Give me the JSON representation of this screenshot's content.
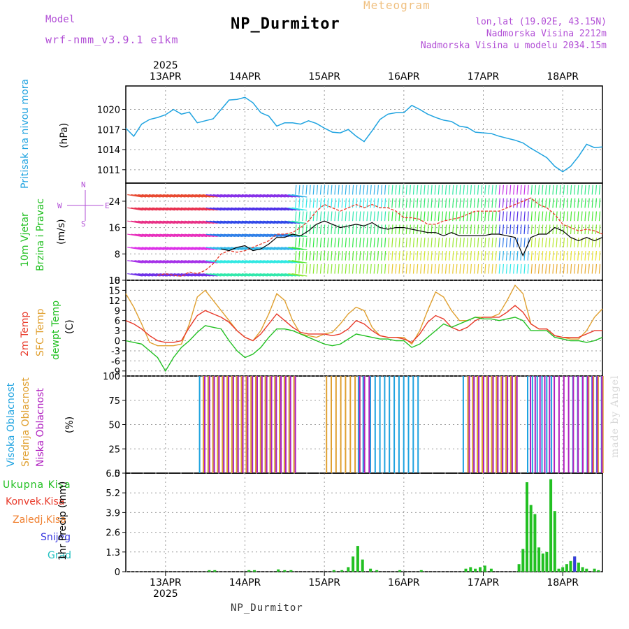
{
  "header": {
    "title": "NP_Durmitor",
    "subtitle": "Meteogram",
    "model_label": "Model",
    "model_value": "wrf-nmm_v3.9.1 e1km",
    "lonlat": "lon,lat (19.02E, 43.15N)",
    "elevation": "Nadmorska Visina 2212m",
    "elevation_model": "Nadmorska Visina u modelu 2034.15m",
    "footer": "NP_Durmitor",
    "watermark": "made by Angel"
  },
  "axis": {
    "year": "2025",
    "days": [
      "13APR",
      "14APR",
      "15APR",
      "16APR",
      "17APR",
      "18APR"
    ]
  },
  "panels": {
    "pressure": {
      "label1": "Pritisak na nivou mora",
      "unit": "(hPa)"
    },
    "wind": {
      "label1": "10m Vjetar",
      "label2": "Brzina i Pravac",
      "unit": "(m/s)",
      "compass_n": "N",
      "compass_s": "S",
      "compass_w": "W",
      "compass_e": "E"
    },
    "temp": {
      "label1": "2m Temp",
      "label2": "SFC Temp",
      "label3": "dewpt Temp",
      "unit": "(C)"
    },
    "cloud": {
      "label1": "Visoka Oblacnost",
      "label2": "Srednja Oblacnost",
      "label3": "Niska Oblacnost",
      "unit": "(%)"
    },
    "precip": {
      "label_total": "Ukupna Kisa",
      "label_conv": "Konvek.Kisa",
      "label_frz": "Zaledj.Kisa",
      "label_snow": "Snijeg",
      "label_hail": "Grad",
      "unit": "1hr Precip (mm)"
    }
  },
  "colors": {
    "pressure": "#1fa3e0",
    "wind_speed": "#000000",
    "wind_gust": "#e83a2a",
    "temp2m": "#e83a2a",
    "sfc": "#e0a030",
    "dewpt": "#22c022",
    "cloud_high": "#1fa3e0",
    "cloud_mid": "#e0a030",
    "cloud_low": "#b020c0",
    "precip_total": "#22c022",
    "precip_snow": "#3a3ae0",
    "purple_text": "#b24fd6"
  },
  "chart_data": [
    {
      "type": "line",
      "name": "pressure",
      "x": [
        12.5,
        12.6,
        12.7,
        12.8,
        12.9,
        13.0,
        13.1,
        13.2,
        13.3,
        13.4,
        13.5,
        13.6,
        13.7,
        13.8,
        13.9,
        14.0,
        14.1,
        14.2,
        14.3,
        14.4,
        14.5,
        14.6,
        14.7,
        14.8,
        14.9,
        15.0,
        15.1,
        15.2,
        15.3,
        15.4,
        15.5,
        15.6,
        15.7,
        15.8,
        15.9,
        16.0,
        16.1,
        16.2,
        16.3,
        16.4,
        16.5,
        16.6,
        16.7,
        16.8,
        16.9,
        17.0,
        17.1,
        17.2,
        17.3,
        17.4,
        17.5,
        17.6,
        17.7,
        17.8,
        17.9,
        18.0,
        18.1,
        18.2,
        18.3,
        18.4,
        18.5
      ],
      "y": [
        1017.2,
        1016,
        1017.8,
        1018.5,
        1018.8,
        1019.2,
        1020,
        1019.3,
        1019.6,
        1018,
        1018.3,
        1018.6,
        1020,
        1021.4,
        1021.5,
        1021.8,
        1021,
        1019.5,
        1019,
        1017.5,
        1018,
        1018,
        1017.8,
        1018.3,
        1017.9,
        1017.2,
        1016.6,
        1016.5,
        1017,
        1016,
        1015.2,
        1016.8,
        1018.5,
        1019.3,
        1019.5,
        1019.5,
        1020.6,
        1020,
        1019.3,
        1018.8,
        1018.4,
        1018.2,
        1017.5,
        1017.3,
        1016.6,
        1016.5,
        1016.4,
        1016,
        1015.7,
        1015.4,
        1015,
        1014.2,
        1013.5,
        1012.8,
        1011.5,
        1010.7,
        1011.5,
        1013,
        1014.8,
        1014.3,
        1014.4
      ],
      "ylim": [
        1009,
        1023.5
      ],
      "yticks": [
        1011,
        1014,
        1017,
        1020
      ]
    },
    {
      "type": "line",
      "name": "wind",
      "x": [
        12.5,
        12.6,
        12.7,
        12.8,
        12.9,
        13.0,
        13.1,
        13.2,
        13.3,
        13.4,
        13.5,
        13.6,
        13.7,
        13.8,
        13.9,
        14.0,
        14.1,
        14.2,
        14.3,
        14.4,
        14.5,
        14.6,
        14.7,
        14.8,
        14.9,
        15.0,
        15.1,
        15.2,
        15.3,
        15.4,
        15.5,
        15.6,
        15.7,
        15.8,
        15.9,
        16.0,
        16.1,
        16.2,
        16.3,
        16.4,
        16.5,
        16.6,
        16.7,
        16.8,
        16.9,
        17.0,
        17.1,
        17.2,
        17.3,
        17.4,
        17.5,
        17.6,
        17.7,
        17.8,
        17.9,
        18.0,
        18.1,
        18.2,
        18.3,
        18.4,
        18.5
      ],
      "speed": [
        null,
        null,
        null,
        null,
        null,
        null,
        null,
        null,
        null,
        null,
        null,
        null,
        9.5,
        9,
        10,
        10.5,
        9,
        9.5,
        11,
        13,
        13,
        14,
        13.5,
        15,
        17,
        18,
        17,
        16,
        16.5,
        17,
        16.5,
        17.5,
        16,
        15.5,
        16,
        16,
        15.5,
        15,
        14.5,
        14.5,
        13.5,
        14.5,
        13.5,
        13.5,
        13.5,
        13.5,
        14,
        14,
        13.5,
        13,
        7.5,
        13,
        14,
        14,
        16,
        15,
        13,
        12,
        13,
        12,
        13
      ],
      "gust": [
        null,
        null,
        null,
        null,
        1.5,
        2,
        1.5,
        1.2,
        2.5,
        2,
        3,
        5,
        8,
        9,
        8.5,
        9,
        10,
        11,
        12,
        14,
        14,
        14.5,
        16,
        18,
        21,
        23,
        22,
        21,
        22,
        23,
        22,
        23,
        22,
        22,
        21,
        19,
        19,
        18.5,
        17,
        17,
        18,
        18.5,
        19,
        20,
        21,
        21,
        21,
        21,
        22,
        23,
        24,
        25,
        23,
        22,
        20,
        17,
        16,
        15,
        15.5,
        15,
        14
      ],
      "ylim": [
        0,
        29.5
      ],
      "yticks": [
        0,
        8,
        16,
        24
      ]
    },
    {
      "type": "line",
      "name": "temperature",
      "x": [
        12.5,
        12.6,
        12.7,
        12.8,
        12.9,
        13.0,
        13.1,
        13.2,
        13.3,
        13.4,
        13.5,
        13.6,
        13.7,
        13.8,
        13.9,
        14.0,
        14.1,
        14.2,
        14.3,
        14.4,
        14.5,
        14.6,
        14.7,
        14.8,
        14.9,
        15.0,
        15.1,
        15.2,
        15.3,
        15.4,
        15.5,
        15.6,
        15.7,
        15.8,
        15.9,
        16.0,
        16.1,
        16.2,
        16.3,
        16.4,
        16.5,
        16.6,
        16.7,
        16.8,
        16.9,
        17.0,
        17.1,
        17.2,
        17.3,
        17.4,
        17.5,
        17.6,
        17.7,
        17.8,
        17.9,
        18.0,
        18.1,
        18.2,
        18.3,
        18.4,
        18.5
      ],
      "t2m": [
        6,
        5,
        3.5,
        1.5,
        0,
        -0.5,
        -0.5,
        0,
        4,
        7.5,
        9,
        8,
        7,
        5.5,
        3,
        1,
        0,
        2,
        5,
        8,
        6,
        4,
        2.5,
        2,
        2,
        2,
        1.5,
        2,
        3.5,
        6,
        5,
        3,
        1.5,
        1,
        1,
        0.5,
        -0.5,
        2,
        5.5,
        7.5,
        6.5,
        4,
        3,
        4,
        6,
        7,
        7,
        7,
        8.5,
        10.5,
        8.5,
        5,
        3.5,
        3.5,
        1.5,
        1,
        1,
        1,
        2,
        3,
        3
      ],
      "sfc": [
        14,
        10,
        5,
        -0.5,
        -1.5,
        -1.5,
        -1.5,
        -1,
        5,
        13,
        15,
        12,
        9,
        6,
        3,
        1,
        0,
        3,
        8,
        14,
        12,
        6,
        2,
        1.5,
        1,
        2,
        2.5,
        5,
        8,
        10,
        9,
        4,
        1.5,
        1,
        1,
        1,
        -1,
        3,
        9,
        14.5,
        13,
        9,
        6,
        6,
        7,
        7,
        7,
        8,
        12,
        16.5,
        14,
        5,
        3.5,
        3.5,
        1.5,
        1,
        0.5,
        0.5,
        3,
        7,
        9.5
      ],
      "dewpt": [
        0,
        -0.5,
        -1,
        -3,
        -5,
        -9,
        -5,
        -2,
        0,
        2.5,
        4.5,
        4,
        3.5,
        0,
        -3,
        -5,
        -4,
        -2,
        1,
        3.5,
        3.5,
        3,
        2,
        1,
        0,
        -1,
        -1.5,
        -1,
        0.5,
        2,
        1.5,
        1,
        0.5,
        0.5,
        0,
        0,
        -2,
        -1,
        1,
        3,
        5,
        4,
        5,
        6,
        7,
        6.5,
        6.5,
        6,
        6.5,
        7,
        6,
        3,
        3,
        3,
        1,
        0.5,
        0,
        0,
        -0.5,
        0,
        1
      ],
      "ylim": [
        -10.5,
        18
      ],
      "yticks": [
        -9,
        -6,
        -3,
        0,
        3,
        6,
        9,
        12,
        15,
        18
      ]
    },
    {
      "type": "bar",
      "name": "cloud_cover",
      "series": [
        {
          "name": "Visoka Oblacnost",
          "spans": [
            [
              13.42,
              14.62
            ],
            [
              15.42,
              15.48
            ],
            [
              15.57,
              16.22
            ],
            [
              16.74,
              17.42
            ],
            [
              17.55,
              17.88
            ],
            [
              18.12,
              18.5
            ]
          ]
        },
        {
          "name": "Srednja Oblacnost",
          "spans": [
            [
              13.45,
              14.62
            ],
            [
              15.0,
              15.5
            ],
            [
              16.78,
              17.42
            ],
            [
              18.3,
              18.5
            ]
          ]
        },
        {
          "name": "Niska Oblacnost",
          "spans": [
            [
              13.45,
              14.62
            ],
            [
              15.4,
              15.55
            ],
            [
              16.78,
              17.42
            ],
            [
              17.55,
              18.5
            ]
          ]
        }
      ],
      "ylim": [
        0,
        100
      ],
      "yticks": [
        0,
        25,
        50,
        75,
        100
      ]
    },
    {
      "type": "bar",
      "name": "precipitation",
      "x": [
        13.55,
        13.62,
        14.05,
        14.12,
        14.42,
        14.5,
        14.58,
        15.12,
        15.22,
        15.3,
        15.36,
        15.42,
        15.48,
        15.58,
        15.66,
        15.95,
        16.22,
        16.78,
        16.84,
        16.9,
        16.96,
        17.02,
        17.1,
        17.45,
        17.5,
        17.55,
        17.6,
        17.65,
        17.7,
        17.75,
        17.8,
        17.85,
        17.9,
        17.95,
        18.0,
        18.05,
        18.1,
        18.15,
        18.2,
        18.25,
        18.3,
        18.4,
        18.45
      ],
      "total": [
        0.1,
        0.1,
        0.1,
        0.1,
        0.15,
        0.1,
        0.1,
        0.1,
        0.1,
        0.3,
        1.0,
        1.7,
        0.8,
        0.2,
        0.1,
        0.1,
        0.1,
        0.2,
        0.3,
        0.2,
        0.3,
        0.4,
        0.2,
        0.5,
        1.5,
        5.9,
        4.4,
        3.8,
        1.6,
        1.2,
        1.3,
        6.1,
        4.0,
        0.2,
        0.3,
        0.5,
        0.7,
        1.0,
        0.6,
        0.3,
        0.2,
        0.2,
        0.1
      ],
      "snow": [
        0,
        0,
        0,
        0,
        0,
        0,
        0,
        0,
        0,
        0,
        0,
        0,
        0,
        0,
        0,
        0,
        0,
        0,
        0,
        0,
        0,
        0,
        0,
        0,
        0,
        0,
        0,
        0,
        0,
        0,
        0,
        0,
        0,
        0,
        0,
        0,
        0,
        1.0,
        0,
        0,
        0,
        0,
        0
      ],
      "ylim": [
        0,
        6.5
      ],
      "yticks": [
        0,
        1.3,
        2.6,
        3.9,
        5.2,
        6.5
      ]
    }
  ]
}
